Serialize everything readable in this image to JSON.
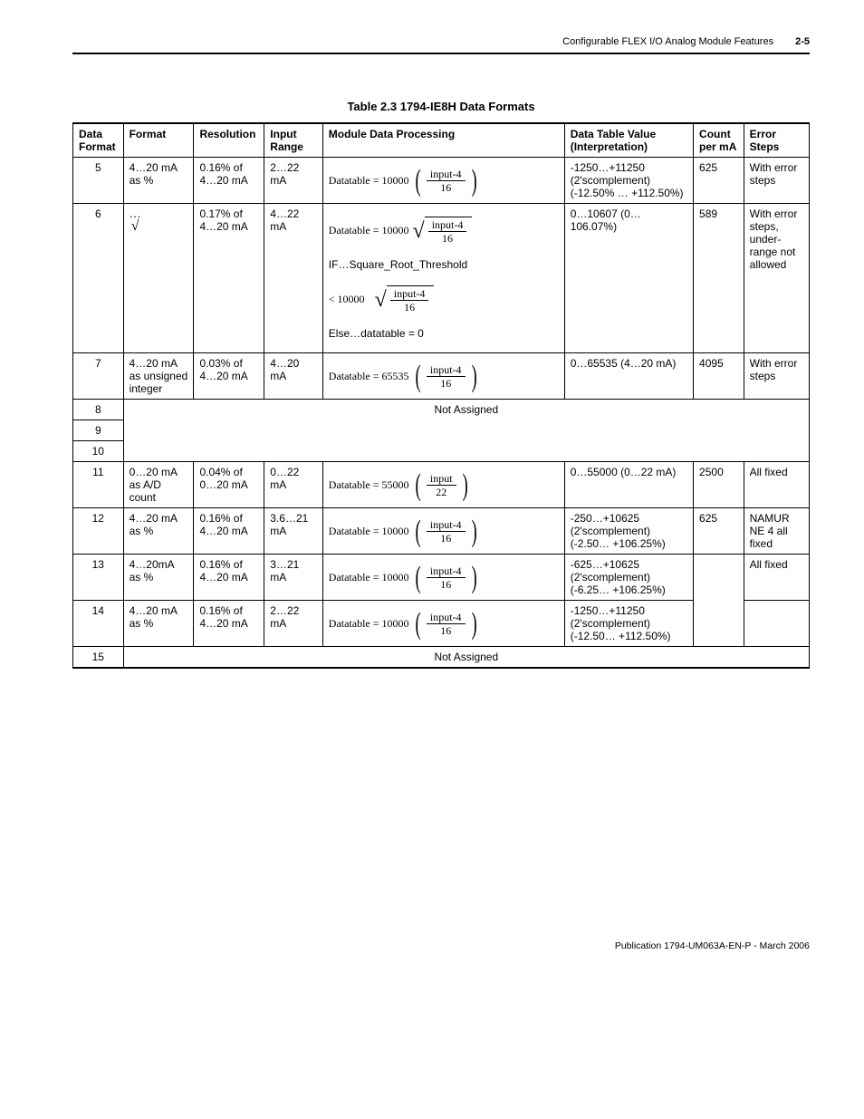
{
  "header": {
    "chapterTitle": "Configurable FLEX I/O Analog Module Features",
    "pageNumber": "2-5"
  },
  "tableTitle": "Table 2.3 1794-IE8H Data Formats",
  "columns": {
    "dataFormat": "Data Format",
    "format": "Format",
    "resolution": "Resolution",
    "inputRange": "Input Range",
    "moduleDataProcessing": "Module Data Processing",
    "dataTableValue": "Data Table Value (Interpretation)",
    "countPerMa": "Count per mA",
    "errorSteps": "Error Steps"
  },
  "rows": {
    "r5": {
      "df": "5",
      "format": "4…20 mA as %",
      "resolution": "0.16% of 4…20 mA",
      "inputRange": "2…22 mA",
      "formula": {
        "prefix": "Datatable = 10000",
        "num": "input-4",
        "den": "16"
      },
      "dtv": "-1250…+11250 (2'scomplement) (-12.50% … +112.50%)",
      "count": "625",
      "error": "With error steps"
    },
    "r6": {
      "df": "6",
      "resolution": "0.17% of 4…20 mA",
      "inputRange": "4…22 mA",
      "formula1": {
        "prefix": "Datatable = 10000",
        "num": "input-4",
        "den": "16"
      },
      "lineIf": "IF…Square_Root_Threshold",
      "formula2": {
        "prefix": "< 10000",
        "num": "input-4",
        "den": "16"
      },
      "lineElse": "Else…datatable = 0",
      "dtv": "0…10607 (0…106.07%)",
      "count": "589",
      "error": "With error steps, under-range not allowed"
    },
    "r7": {
      "df": "7",
      "format": "4…20 mA as unsigned integer",
      "resolution": "0.03% of 4…20 mA",
      "inputRange": "4…20 mA",
      "formula": {
        "prefix": "Datatable = 65535",
        "num": "input-4",
        "den": "16"
      },
      "dtv": "0…65535 (4…20 mA)",
      "count": "4095",
      "error": "With error steps"
    },
    "r8": {
      "df": "8"
    },
    "r9": {
      "df": "9"
    },
    "r10": {
      "df": "10"
    },
    "notAssigned": "Not Assigned",
    "r11": {
      "df": "11",
      "format": "0…20 mA as A/D count",
      "resolution": "0.04% of 0…20 mA",
      "inputRange": "0…22 mA",
      "formula": {
        "prefix": "Datatable = 55000",
        "num": "input",
        "den": "22"
      },
      "dtv": "0…55000 (0…22 mA)",
      "count": "2500",
      "error": "All fixed"
    },
    "r12": {
      "df": "12",
      "format": "4…20 mA as %",
      "resolution": "0.16% of 4…20 mA",
      "inputRange": "3.6…21 mA",
      "formula": {
        "prefix": "Datatable = 10000",
        "num": "input-4",
        "den": "16"
      },
      "dtv": "-250…+10625 (2'scomplement) (-2.50… +106.25%)",
      "count": "625",
      "error": "NAMUR NE 4 all fixed"
    },
    "r13": {
      "df": "13",
      "format": "4…20mA as %",
      "resolution": "0.16% of 4…20 mA",
      "inputRange": "3…21 mA",
      "formula": {
        "prefix": "Datatable = 10000",
        "num": "input-4",
        "den": "16"
      },
      "dtv": "-625…+10625 (2'scomplement) (-6.25… +106.25%)",
      "error": "All fixed"
    },
    "r14": {
      "df": "14",
      "format": "4…20 mA as %",
      "resolution": "0.16% of 4…20 mA",
      "inputRange": "2…22 mA",
      "formula": {
        "prefix": "Datatable = 10000",
        "num": "input-4",
        "den": "16"
      },
      "dtv": "-1250…+11250 (2'scomplement) (-12.50… +112.50%)"
    },
    "r15": {
      "df": "15"
    }
  },
  "footer": "Publication 1794-UM063A-EN-P - March 2006"
}
